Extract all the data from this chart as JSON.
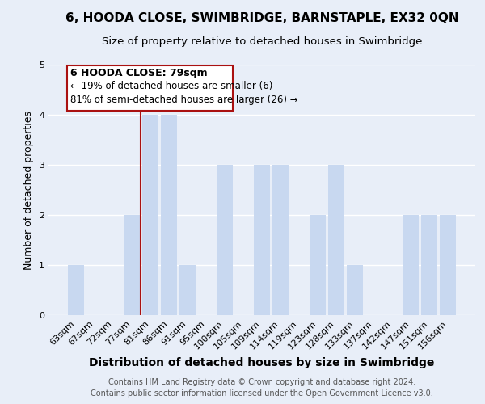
{
  "title": "6, HOODA CLOSE, SWIMBRIDGE, BARNSTAPLE, EX32 0QN",
  "subtitle": "Size of property relative to detached houses in Swimbridge",
  "xlabel": "Distribution of detached houses by size in Swimbridge",
  "ylabel": "Number of detached properties",
  "categories": [
    "63sqm",
    "67sqm",
    "72sqm",
    "77sqm",
    "81sqm",
    "86sqm",
    "91sqm",
    "95sqm",
    "100sqm",
    "105sqm",
    "109sqm",
    "114sqm",
    "119sqm",
    "123sqm",
    "128sqm",
    "133sqm",
    "137sqm",
    "142sqm",
    "147sqm",
    "151sqm",
    "156sqm"
  ],
  "values": [
    1,
    0,
    0,
    2,
    4,
    4,
    1,
    0,
    3,
    0,
    3,
    3,
    0,
    2,
    3,
    1,
    0,
    0,
    2,
    2,
    2
  ],
  "bar_color": "#c8d8f0",
  "highlight_line_color": "#aa1111",
  "annotation_title": "6 HOODA CLOSE: 79sqm",
  "annotation_line1": "← 19% of detached houses are smaller (6)",
  "annotation_line2": "81% of semi-detached houses are larger (26) →",
  "annotation_box_facecolor": "#ffffff",
  "annotation_box_edgecolor": "#aa1111",
  "ylim": [
    0,
    5
  ],
  "yticks": [
    0,
    1,
    2,
    3,
    4,
    5
  ],
  "footer1": "Contains HM Land Registry data © Crown copyright and database right 2024.",
  "footer2": "Contains public sector information licensed under the Open Government Licence v3.0.",
  "background_color": "#e8eef8",
  "grid_color": "#ffffff",
  "title_fontsize": 11,
  "subtitle_fontsize": 9.5,
  "xlabel_fontsize": 10,
  "ylabel_fontsize": 9,
  "tick_fontsize": 8,
  "annotation_title_fontsize": 9,
  "annotation_text_fontsize": 8.5,
  "footer_fontsize": 7
}
